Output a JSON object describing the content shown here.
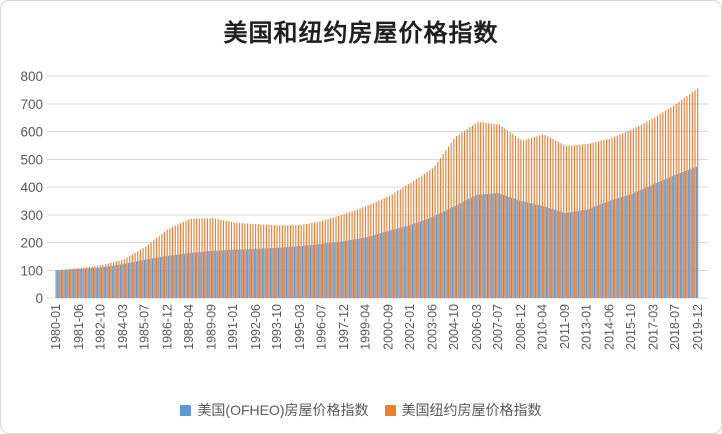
{
  "chart_data": {
    "type": "bar",
    "title": "美国和纽约房屋价格指数",
    "categories": [
      "1980-01",
      "1981-06",
      "1982-10",
      "1984-03",
      "1985-07",
      "1986-12",
      "1988-04",
      "1989-09",
      "1991-01",
      "1992-06",
      "1993-10",
      "1995-03",
      "1996-07",
      "1997-12",
      "1999-04",
      "2000-09",
      "2002-01",
      "2003-06",
      "2004-10",
      "2006-03",
      "2007-07",
      "2008-12",
      "2010-04",
      "2011-09",
      "2013-01",
      "2014-06",
      "2015-10",
      "2017-03",
      "2018-07",
      "2019-12"
    ],
    "anchor_month_index": [
      0,
      17,
      33,
      50,
      66,
      83,
      99,
      116,
      132,
      149,
      165,
      182,
      198,
      215,
      231,
      248,
      264,
      281,
      297,
      314,
      330,
      347,
      363,
      380,
      396,
      413,
      429,
      446,
      462,
      479
    ],
    "total_months": 480,
    "first_month": "1980-01",
    "last_month": "2019-12",
    "series": [
      {
        "name": "美国(OFHEO)房屋价格指数",
        "color": "#5B9BD5",
        "values": [
          100,
          105,
          110,
          122,
          138,
          152,
          162,
          170,
          174,
          177,
          181,
          187,
          195,
          205,
          218,
          242,
          262,
          292,
          330,
          372,
          378,
          350,
          332,
          306,
          318,
          350,
          374,
          410,
          443,
          475
        ]
      },
      {
        "name": "美国纽约房屋价格指数",
        "color": "#ED7D31",
        "values": [
          100,
          108,
          118,
          140,
          185,
          250,
          285,
          288,
          272,
          266,
          262,
          263,
          278,
          303,
          332,
          368,
          416,
          470,
          580,
          635,
          625,
          567,
          590,
          548,
          555,
          575,
          608,
          650,
          700,
          758
        ]
      }
    ],
    "xlabel": "",
    "ylabel": "",
    "ylim": [
      0,
      800
    ],
    "yticks": [
      0,
      100,
      200,
      300,
      400,
      500,
      600,
      700,
      800
    ],
    "grid": true,
    "grid_color": "#D9D9D9",
    "axis_text_color": "#595959",
    "legend_position": "bottom"
  }
}
